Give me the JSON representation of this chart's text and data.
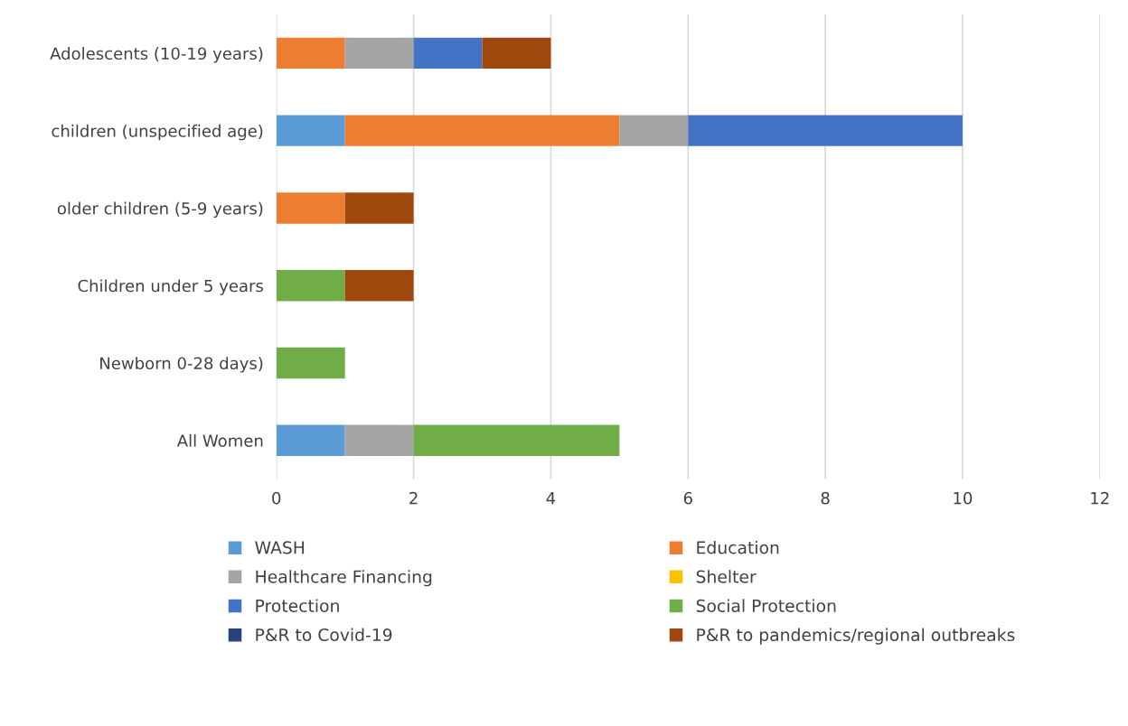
{
  "chart_data": {
    "type": "bar",
    "orientation": "horizontal",
    "stacked": true,
    "categories": [
      "Adolescents (10-19 years)",
      "children (unspecified age)",
      "older children (5-9 years)",
      "Children under 5 years",
      "Newborn 0-28 days)",
      "All Women"
    ],
    "series": [
      {
        "name": "WASH",
        "color": "#5b9bd5",
        "values": [
          0,
          1,
          0,
          0,
          0,
          1
        ]
      },
      {
        "name": "Education",
        "color": "#ed7d31",
        "values": [
          1,
          4,
          1,
          0,
          0,
          0
        ]
      },
      {
        "name": "Healthcare Financing",
        "color": "#a5a5a5",
        "values": [
          1,
          1,
          0,
          0,
          0,
          1
        ]
      },
      {
        "name": "Shelter",
        "color": "#ffc000",
        "values": [
          0,
          0,
          0,
          0,
          0,
          0
        ]
      },
      {
        "name": "Protection",
        "color": "#4472c4",
        "values": [
          1,
          4,
          0,
          0,
          0,
          0
        ]
      },
      {
        "name": "Social Protection",
        "color": "#70ad47",
        "values": [
          0,
          0,
          0,
          1,
          1,
          3
        ]
      },
      {
        "name": "P&R to Covid-19",
        "color": "#264478",
        "values": [
          0,
          0,
          0,
          0,
          0,
          0
        ]
      },
      {
        "name": "P&R to pandemics/regional outbreaks",
        "color": "#9e480e",
        "values": [
          1,
          0,
          1,
          1,
          0,
          0
        ]
      }
    ],
    "xlim": [
      0,
      12
    ],
    "xticks": [
      0,
      2,
      4,
      6,
      8,
      10,
      12
    ],
    "grid": "x",
    "legend": "bottom"
  }
}
